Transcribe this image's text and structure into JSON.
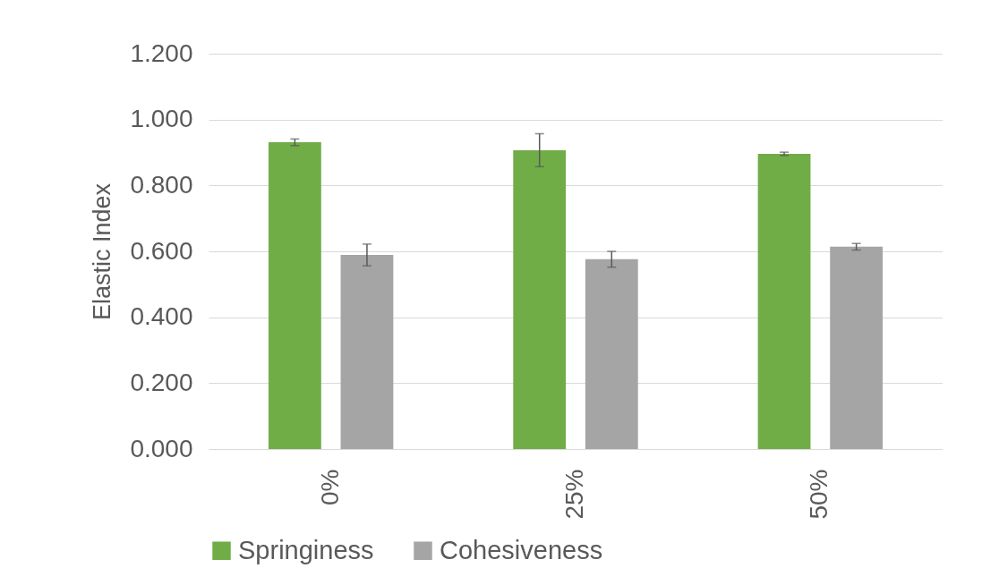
{
  "chart_data": {
    "type": "bar",
    "ylabel": "Elastic Index",
    "categories": [
      "0%",
      "25%",
      "50%"
    ],
    "series": [
      {
        "name": "Springiness",
        "color": "#70ad47",
        "values": [
          0.931,
          0.907,
          0.896
        ],
        "errors": [
          0.01,
          0.05,
          0.005
        ]
      },
      {
        "name": "Cohesiveness",
        "color": "#a5a5a5",
        "values": [
          0.589,
          0.576,
          0.614
        ],
        "errors": [
          0.033,
          0.024,
          0.01
        ]
      }
    ],
    "ylim": [
      0,
      1.2
    ],
    "yticks": [
      {
        "value": 0,
        "label": "0.000"
      },
      {
        "value": 0.2,
        "label": "0.200"
      },
      {
        "value": 0.4,
        "label": "0.400"
      },
      {
        "value": 0.6,
        "label": "0.600"
      },
      {
        "value": 0.8,
        "label": "0.800"
      },
      {
        "value": 1,
        "label": "1.000"
      },
      {
        "value": 1.2,
        "label": "1.200"
      }
    ],
    "grid": "y",
    "legend": "bottom"
  }
}
